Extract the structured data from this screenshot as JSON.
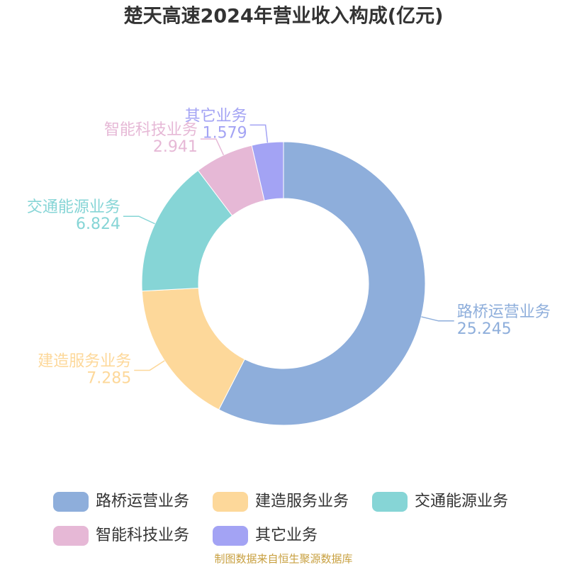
{
  "chart_data": {
    "type": "donut",
    "title": "楚天高速2024年营业收入构成(亿元)",
    "categories": [
      "路桥运营业务",
      "建造服务业务",
      "交通能源业务",
      "智能科技业务",
      "其它业务"
    ],
    "values": [
      25.245,
      7.285,
      6.824,
      2.941,
      1.579
    ],
    "colors": [
      "#8eaedb",
      "#fdd89a",
      "#86d5d6",
      "#e6b8d6",
      "#a3a3f4"
    ],
    "source": "制图数据来自恒生聚源数据库"
  }
}
